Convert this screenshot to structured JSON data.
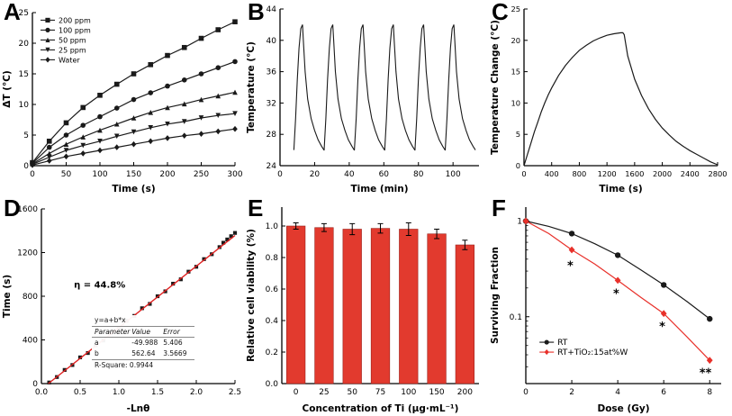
{
  "colors": {
    "accent_red": "#e8302a",
    "series_black": "#1a1a1a",
    "bar_red": "#e23a2e"
  },
  "chart_data": [
    {
      "panel_label": "A",
      "type": "line",
      "xlabel": "Time (s)",
      "ylabel": "ΔT (°C)",
      "xlim": [
        0,
        300
      ],
      "ylim": [
        0,
        25
      ],
      "xticks": [
        0,
        50,
        100,
        150,
        200,
        250,
        300
      ],
      "yticks": [
        0,
        5,
        10,
        15,
        20,
        25
      ],
      "x": [
        0,
        25,
        50,
        75,
        100,
        125,
        150,
        175,
        200,
        225,
        250,
        275,
        300
      ],
      "series": [
        {
          "name": "200 ppm",
          "marker": "square",
          "color": "#1a1a1a",
          "y": [
            0.5,
            4.0,
            7.0,
            9.5,
            11.5,
            13.3,
            15.0,
            16.5,
            18.0,
            19.3,
            20.8,
            22.2,
            23.5
          ]
        },
        {
          "name": "100 ppm",
          "marker": "circle",
          "color": "#1a1a1a",
          "y": [
            0.4,
            3.0,
            5.0,
            6.6,
            8.0,
            9.4,
            10.8,
            11.9,
            13.0,
            14.0,
            15.0,
            16.0,
            17.0
          ]
        },
        {
          "name": "50 ppm",
          "marker": "triangle-up",
          "color": "#1a1a1a",
          "y": [
            0.3,
            2.0,
            3.5,
            4.7,
            5.8,
            6.8,
            7.8,
            8.7,
            9.5,
            10.1,
            10.8,
            11.4,
            12.0
          ]
        },
        {
          "name": "25 ppm",
          "marker": "triangle-down",
          "color": "#1a1a1a",
          "y": [
            0.2,
            1.4,
            2.5,
            3.3,
            4.0,
            4.8,
            5.5,
            6.2,
            6.8,
            7.2,
            7.8,
            8.2,
            8.5
          ]
        },
        {
          "name": "Water",
          "marker": "diamond",
          "color": "#1a1a1a",
          "y": [
            0.1,
            0.8,
            1.5,
            2.0,
            2.5,
            3.0,
            3.5,
            4.0,
            4.5,
            4.9,
            5.2,
            5.6,
            6.0
          ]
        }
      ],
      "legend": {
        "fx": 0.04,
        "fy": 0.02,
        "fs": 8
      }
    },
    {
      "panel_label": "B",
      "type": "line",
      "xlabel": "Time (min)",
      "ylabel": "Temperature (°C)",
      "xlim": [
        0,
        115
      ],
      "ylim": [
        24,
        44
      ],
      "xticks": [
        0,
        20,
        40,
        60,
        80,
        100
      ],
      "yticks": [
        24,
        28,
        32,
        36,
        40,
        44
      ],
      "series": [
        {
          "name": null,
          "color": "#1a1a1a",
          "width": 1.1,
          "x": [
            8,
            9,
            10,
            11,
            12,
            13,
            13.5,
            14.5,
            16,
            18,
            20,
            22,
            24,
            25.4,
            25.5,
            26.5,
            27.5,
            28.5,
            29.5,
            30.5,
            31,
            32,
            33.5,
            35.5,
            37.5,
            39.5,
            41.5,
            42.9,
            43,
            44,
            45,
            46,
            47,
            48,
            48.5,
            49.5,
            51,
            53,
            55,
            57,
            59,
            60.4,
            60.5,
            61.5,
            62.5,
            63.5,
            64.5,
            65.5,
            66,
            67,
            68.5,
            70.5,
            72.5,
            74.5,
            76.5,
            77.9,
            78,
            79,
            80,
            81,
            82,
            83,
            83.5,
            84.5,
            86,
            88,
            90,
            92,
            94,
            95.4,
            95.5,
            96.5,
            97.5,
            98.5,
            99.5,
            100.5,
            101,
            102,
            103.5,
            105.5,
            107.5,
            109.5,
            111.5,
            112.9
          ],
          "y": [
            26,
            30,
            35,
            39,
            41.5,
            42,
            40,
            36,
            32.5,
            30,
            28.5,
            27.3,
            26.5,
            26,
            26,
            30,
            35,
            39,
            41.5,
            42,
            40,
            36,
            32.5,
            30,
            28.5,
            27.3,
            26.5,
            26,
            26,
            30,
            35,
            39,
            41.5,
            42,
            40,
            36,
            32.5,
            30,
            28.5,
            27.3,
            26.5,
            26,
            26,
            30,
            35,
            39,
            41.5,
            42,
            40,
            36,
            32.5,
            30,
            28.5,
            27.3,
            26.5,
            26,
            26,
            30,
            35,
            39,
            41.5,
            42,
            40,
            36,
            32.5,
            30,
            28.5,
            27.3,
            26.5,
            26,
            26,
            30,
            35,
            39,
            41.5,
            42,
            40,
            36,
            32.5,
            30,
            28.5,
            27.3,
            26.5,
            26
          ]
        }
      ]
    },
    {
      "panel_label": "C",
      "type": "line",
      "xlabel": "Time (s)",
      "ylabel": "Temperature Change (°C)",
      "xlim": [
        0,
        2800
      ],
      "ylim": [
        0,
        25
      ],
      "xticks": [
        0,
        400,
        800,
        1200,
        1600,
        2000,
        2400,
        2800
      ],
      "yticks": [
        0,
        5,
        10,
        15,
        20,
        25
      ],
      "series": [
        {
          "name": null,
          "color": "#1a1a1a",
          "width": 1.2,
          "x": [
            0,
            50,
            100,
            150,
            200,
            250,
            300,
            350,
            400,
            500,
            600,
            700,
            800,
            900,
            1000,
            1100,
            1200,
            1300,
            1400,
            1430,
            1450,
            1470,
            1500,
            1600,
            1700,
            1800,
            1900,
            2000,
            2100,
            2200,
            2300,
            2400,
            2500,
            2600,
            2700,
            2800
          ],
          "y": [
            0,
            1.8,
            3.6,
            5.4,
            7.0,
            8.6,
            10.0,
            11.3,
            12.4,
            14.4,
            16.0,
            17.3,
            18.4,
            19.2,
            19.9,
            20.4,
            20.8,
            21.05,
            21.2,
            21.2,
            20.9,
            19.5,
            17.5,
            13.8,
            11.2,
            9.1,
            7.4,
            6.0,
            4.9,
            3.9,
            3.1,
            2.4,
            1.8,
            1.2,
            0.6,
            0.15
          ]
        }
      ]
    },
    {
      "panel_label": "D",
      "type": "scatter-fit",
      "xlabel": "-Lnθ",
      "ylabel": "Time (s)",
      "xlim": [
        0,
        2.5
      ],
      "ylim": [
        0,
        1600
      ],
      "xticks": [
        0,
        0.5,
        1.0,
        1.5,
        2.0,
        2.5
      ],
      "xticklabels": [
        "0.0",
        "0.5",
        "1.0",
        "1.5",
        "2.0",
        "2.5"
      ],
      "yticks": [
        0,
        400,
        800,
        1200,
        1600
      ],
      "series": [
        {
          "name": null,
          "marker": "square",
          "marker_size": 2.1,
          "line": false,
          "color": "#1a1a1a",
          "x": [
            0.1,
            0.2,
            0.3,
            0.4,
            0.5,
            0.6,
            0.7,
            0.8,
            0.9,
            1.0,
            1.1,
            1.2,
            1.3,
            1.4,
            1.5,
            1.6,
            1.7,
            1.8,
            1.9,
            2.0,
            2.1,
            2.2,
            2.3,
            2.35,
            2.4,
            2.45,
            2.5
          ],
          "y": [
            10,
            60,
            125,
            170,
            240,
            280,
            350,
            395,
            465,
            505,
            575,
            620,
            690,
            730,
            800,
            845,
            915,
            955,
            1025,
            1070,
            1140,
            1185,
            1250,
            1290,
            1320,
            1350,
            1380
          ]
        },
        {
          "name": null,
          "color": "#e02020",
          "width": 1.4,
          "x": [
            0.089,
            2.5
          ],
          "y": [
            0,
            1356.6
          ]
        }
      ],
      "annotations": [
        {
          "x": 0.42,
          "y": 880,
          "text": "η = 44.8%",
          "size": 10,
          "bold": true
        }
      ],
      "inset": {
        "eq": "y=a+b*x",
        "col_param": "Parameter",
        "col_value": "Value",
        "col_error": "Error",
        "a_name": "a",
        "a_value": "-49.988",
        "a_error": "5.406",
        "b_name": "b",
        "b_value": "562.64",
        "b_error": "3.5669",
        "rsquare": "R-Square: 0.9944"
      }
    },
    {
      "panel_label": "E",
      "type": "bar",
      "xlabel": "Concentration of Ti (μg·mL⁻¹)",
      "ylabel": "Relative cell viability (%)",
      "xlim": [
        0,
        7
      ],
      "ylim": [
        0,
        1.12
      ],
      "yticks": [
        0,
        0.2,
        0.4,
        0.6,
        0.8,
        1.0
      ],
      "yticklabels": [
        "0.0",
        "0.2",
        "0.4",
        "0.6",
        "0.8",
        "1.0"
      ],
      "categories": [
        "0",
        "25",
        "50",
        "75",
        "100",
        "150",
        "200"
      ],
      "values": [
        1.0,
        0.99,
        0.98,
        0.985,
        0.98,
        0.95,
        0.88
      ],
      "errors": [
        0.02,
        0.025,
        0.035,
        0.03,
        0.04,
        0.03,
        0.03
      ],
      "bar_color": "#e23a2e"
    },
    {
      "panel_label": "F",
      "type": "line",
      "xlabel": "Dose (Gy)",
      "ylabel": "Surviving Fraction",
      "xlim": [
        0,
        8.5
      ],
      "ylim": [
        0.02,
        1.4
      ],
      "ylog": true,
      "xticks": [
        0,
        2,
        4,
        6,
        8
      ],
      "yticks": [
        1,
        0.1
      ],
      "yticklabels": [
        "1",
        "0.1"
      ],
      "series": [
        {
          "name": "RT",
          "marker": "circle",
          "marker_every": 2,
          "marker_size": 3.2,
          "color": "#1a1a1a",
          "x": [
            0,
            1,
            2,
            3,
            4,
            5,
            6,
            7,
            8
          ],
          "y": [
            1,
            0.88,
            0.74,
            0.58,
            0.44,
            0.31,
            0.215,
            0.145,
            0.095
          ]
        },
        {
          "name": "RT+TiO₂:15at%W",
          "marker": "diamond",
          "marker_every": 2,
          "marker_size": 3.4,
          "color": "#e8302a",
          "x": [
            0,
            1,
            2,
            3,
            4,
            5,
            6,
            7,
            8
          ],
          "y": [
            1,
            0.74,
            0.5,
            0.355,
            0.24,
            0.16,
            0.108,
            0.062,
            0.035
          ]
        }
      ],
      "annotations": [
        {
          "x": 1.8,
          "y": 0.31,
          "text": "*",
          "size": 13,
          "bold": true
        },
        {
          "x": 3.8,
          "y": 0.158,
          "text": "*",
          "size": 13,
          "bold": true
        },
        {
          "x": 5.8,
          "y": 0.072,
          "text": "*",
          "size": 13,
          "bold": true
        },
        {
          "x": 7.55,
          "y": 0.0235,
          "text": "**",
          "size": 13,
          "bold": true
        }
      ],
      "legend": {
        "fx": 0.07,
        "fy": 0.74,
        "fs": 9
      }
    }
  ]
}
